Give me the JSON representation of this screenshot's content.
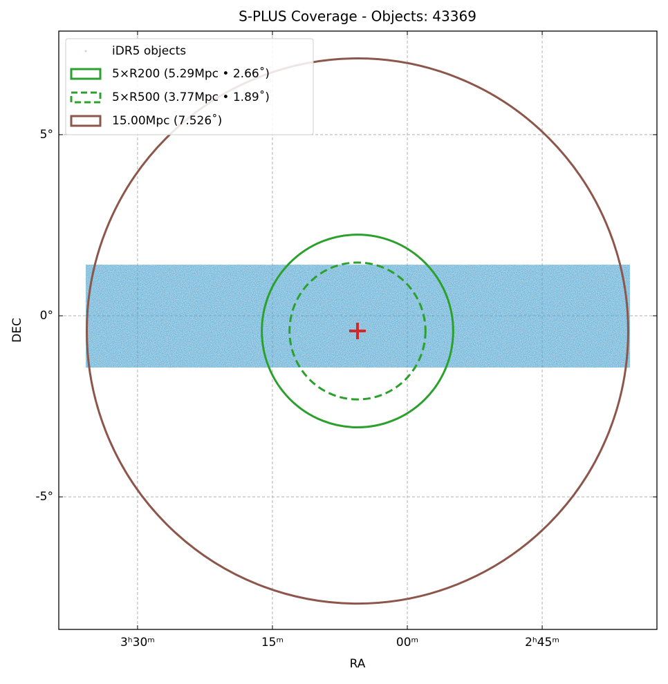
{
  "chart_data": {
    "type": "scatter",
    "title": "S-PLUS Coverage - Objects: 43369",
    "x_label": "RA",
    "y_label": "DEC",
    "xlim": [
      54.69,
      38.06
    ],
    "ylim": [
      -8.66,
      7.86
    ],
    "xticks": [
      {
        "value": 52.5,
        "label": "3ʰ30ᵐ"
      },
      {
        "value": 48.75,
        "label": "15ᵐ"
      },
      {
        "value": 45,
        "label": "00ᵐ"
      },
      {
        "value": 41.25,
        "label": "2ʰ45ᵐ"
      }
    ],
    "yticks": [
      {
        "value": 5,
        "label": "5°"
      },
      {
        "value": 0,
        "label": "0°"
      },
      {
        "value": -5,
        "label": "-5°"
      }
    ],
    "grid": true,
    "legend": "upper left",
    "objects": {
      "name": "iDR5 objects",
      "color": "#1f77b4",
      "ra_range": [
        53.94,
        38.81
      ],
      "dec_range": [
        1.41,
        -1.43
      ]
    },
    "center": {
      "ra": 46.385,
      "dec": -0.42,
      "color": "#d62728"
    },
    "circles": [
      {
        "name": "5×R200 (5.29Mpc • 2.66˚)",
        "radius": 2.66,
        "color": "#2ca02c",
        "dashed": false
      },
      {
        "name": "5×R500 (3.77Mpc • 1.89˚)",
        "radius": 1.89,
        "color": "#2ca02c",
        "dashed": true
      },
      {
        "name": "15.00Mpc (7.526˚)",
        "radius": 7.526,
        "color": "#8c564b",
        "dashed": false
      }
    ]
  }
}
